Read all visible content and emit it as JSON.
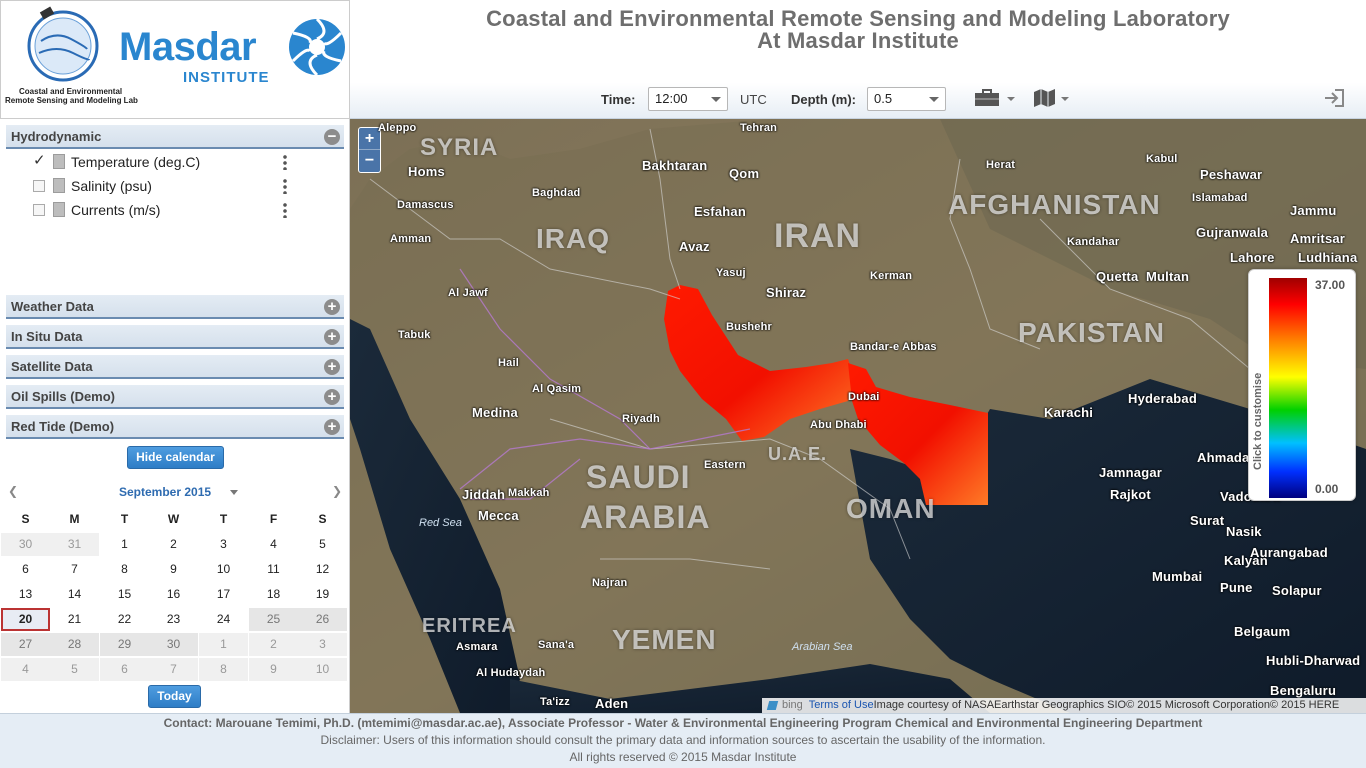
{
  "logo": {
    "lab_line1": "Coastal and Environmental",
    "lab_line2": "Remote Sensing and Modeling Lab",
    "brand": "Masdar",
    "brand_sub": "INSTITUTE"
  },
  "header": {
    "title_line1": "Coastal and Environmental Remote Sensing and Modeling Laboratory",
    "title_line2": "At Masdar Institute"
  },
  "toolbar": {
    "time_label": "Time:",
    "time_value": "12:00",
    "utc_label": "UTC",
    "depth_label": "Depth (m):",
    "depth_value": "0.5"
  },
  "sidebar": {
    "sections": [
      {
        "label": "Hydrodynamic",
        "state": "−"
      },
      {
        "label": "Weather Data",
        "state": "+"
      },
      {
        "label": "In Situ Data",
        "state": "+"
      },
      {
        "label": "Satellite Data",
        "state": "+"
      },
      {
        "label": "Oil Spills (Demo)",
        "state": "+"
      },
      {
        "label": "Red Tide (Demo)",
        "state": "+"
      }
    ],
    "layers": [
      {
        "label": "Temperature (deg.C)",
        "check": "✓"
      },
      {
        "label": "Salinity (psu)",
        "check": ""
      },
      {
        "label": "Currents (m/s)",
        "check": ""
      }
    ],
    "hide_calendar_label": "Hide calendar"
  },
  "calendar": {
    "prev": "❮",
    "next": "❯",
    "month_label": "September 2015",
    "weekdays": [
      "S",
      "M",
      "T",
      "W",
      "T",
      "F",
      "S"
    ],
    "rows": [
      [
        "30",
        "31",
        "1",
        "2",
        "3",
        "4",
        "5"
      ],
      [
        "6",
        "7",
        "8",
        "9",
        "10",
        "11",
        "12"
      ],
      [
        "13",
        "14",
        "15",
        "16",
        "17",
        "18",
        "19"
      ],
      [
        "20",
        "21",
        "22",
        "23",
        "24",
        "25",
        "26"
      ],
      [
        "27",
        "28",
        "29",
        "30",
        "1",
        "2",
        "3"
      ],
      [
        "4",
        "5",
        "6",
        "7",
        "8",
        "9",
        "10"
      ]
    ],
    "today_label": "Today"
  },
  "map": {
    "zoom_in": "+",
    "zoom_out": "−",
    "countries": [
      "SYRIA",
      "IRAQ",
      "IRAN",
      "AFGHANISTAN",
      "PAKISTAN",
      "SAUDI",
      "ARABIA",
      "OMAN",
      "YEMEN",
      "ERITREA",
      "U.A.E."
    ],
    "cities": [
      "Aleppo",
      "Homs",
      "Damascus",
      "Amman",
      "Baghdad",
      "Bakhtaran",
      "Tehran",
      "Qom",
      "Esfahan",
      "Avaz",
      "Yasuj",
      "Shiraz",
      "Kerman",
      "Herat",
      "Kabul",
      "Peshawar",
      "Islamabad",
      "Jammu",
      "Amritsar",
      "Ludhiana",
      "Gujranwala",
      "Lahore",
      "Kandahar",
      "Quetta",
      "Multan",
      "Bushehr",
      "Bandar-e Abbas",
      "Karachi",
      "Hyderabad",
      "Jamnagar",
      "Rajkot",
      "Ahmadabad",
      "Vadodara",
      "Surat",
      "Nasik",
      "Kalyan",
      "Aurangabad",
      "Mumbai",
      "Pune",
      "Solapur",
      "Belgaum",
      "Hubli-Dharwad",
      "Bengaluru",
      "Riyadh",
      "Medina",
      "Jiddah",
      "Mecca",
      "Makkah",
      "Sana'a",
      "Aden",
      "Asmara",
      "Abu Dhabi",
      "Dubai",
      "Al Hudaydah",
      "Najran",
      "Al Qasim",
      "Eastern",
      "Hail",
      "Tabuk",
      "Al Jawf",
      "Ta'izz"
    ],
    "seas": [
      "Red Sea",
      "Arabian Sea"
    ],
    "legend_caption": "Click to customise",
    "legend_max": "37.00",
    "legend_min": "0.00",
    "attribution_bing": "bing",
    "attribution_terms": "Terms of Use",
    "attribution_text": "Image courtesy of NASAEarthstar Geographics SIO© 2015 Microsoft Corporation© 2015 HERE"
  },
  "footer": {
    "contact": "Contact: Marouane Temimi, Ph.D. (mtemimi@masdar.ac.ae), Associate Professor - Water & Environmental Engineering Program Chemical and Environmental Engineering Department",
    "disclaimer": "Disclaimer: Users of this information should consult the primary data and information sources to ascertain the usability of the information.",
    "rights": "All rights reserved © 2015 Masdar Institute"
  },
  "colors": {
    "accent": "#2e7dc6",
    "header_bar": "#d5e0ec",
    "sst_red": "#ff1a00"
  }
}
